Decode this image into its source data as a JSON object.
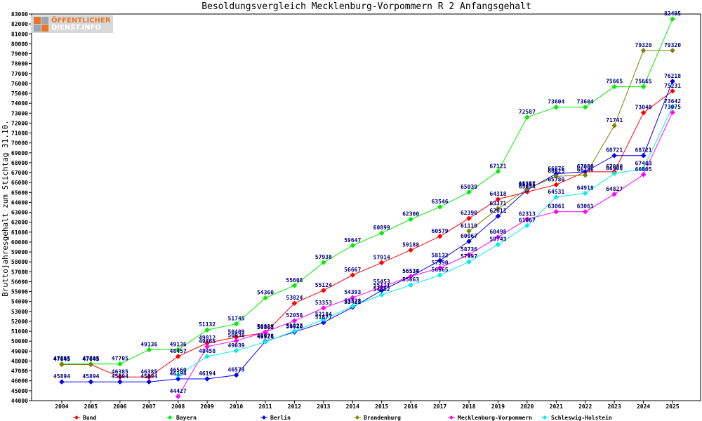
{
  "logo": {
    "line1": "ÖFFENTLICHER",
    "line2": "DIENST.INFO"
  },
  "chart_data": {
    "type": "line",
    "title": "Besoldungsvergleich Mecklenburg-Vorpommern R 2 Anfangsgehalt",
    "xlabel": "",
    "ylabel": "Bruttojahresgehalt zum Stichtag 31.10.",
    "x": [
      "2004",
      "2005",
      "2006",
      "2007",
      "2008",
      "2009",
      "2010",
      "2011",
      "2012",
      "2013",
      "2014",
      "2015",
      "2016",
      "2017",
      "2018",
      "2019",
      "2020",
      "2021",
      "2022",
      "2023",
      "2024",
      "2025"
    ],
    "ylim": [
      44000,
      83000
    ],
    "ytick_step": 1000,
    "grid": false,
    "legend_position": "bottom",
    "series": [
      {
        "name": "Bund",
        "color": "#ff0000",
        "values": [
          47645,
          47645,
          46385,
          46385,
          48457,
          49812,
          50409,
          50862,
          53824,
          55124,
          56667,
          57914,
          59188,
          60579,
          62390,
          64318,
          65058,
          65780,
          67080,
          67080,
          73040,
          75231
        ]
      },
      {
        "name": "Bayern",
        "color": "#00ee00",
        "values": [
          47705,
          47705,
          47705,
          49136,
          49136,
          51132,
          51745,
          54360,
          55608,
          57938,
          59647,
          60899,
          62300,
          63546,
          65039,
          67121,
          72587,
          73604,
          73604,
          75665,
          75665,
          82495
        ]
      },
      {
        "name": "Berlin",
        "color": "#0000ff",
        "values": [
          45894,
          45894,
          45894,
          45894,
          46194,
          46194,
          46573,
          49978,
          50920,
          51877,
          53422,
          55111,
          56538,
          58132,
          60067,
          62611,
          65265,
          66876,
          67086,
          68721,
          68721,
          76218
        ]
      },
      {
        "name": "Brandenburg",
        "color": "#808000",
        "values": [
          47645,
          47645,
          null,
          null,
          null,
          null,
          null,
          null,
          null,
          null,
          null,
          null,
          null,
          null,
          61110,
          63371,
          65357,
          66625,
          66746,
          71741,
          79320,
          79320
        ]
      },
      {
        "name": "Mecklenburg-Vorpommern",
        "color": "#ff00ff",
        "values": [
          null,
          null,
          null,
          null,
          44427,
          49465,
          50038,
          50929,
          52058,
          53353,
          54393,
          55453,
          56534,
          57390,
          58736,
          60498,
          62313,
          63061,
          63061,
          64827,
          66805,
          73075
        ]
      },
      {
        "name": "Schleswig-Holstein",
        "color": "#00eeee",
        "values": [
          null,
          null,
          null,
          null,
          46560,
          48458,
          49039,
          49926,
          51022,
          52184,
          53528,
          54682,
          55663,
          56665,
          57997,
          59743,
          61667,
          64531,
          64918,
          66908,
          67403,
          73642
        ]
      }
    ]
  }
}
